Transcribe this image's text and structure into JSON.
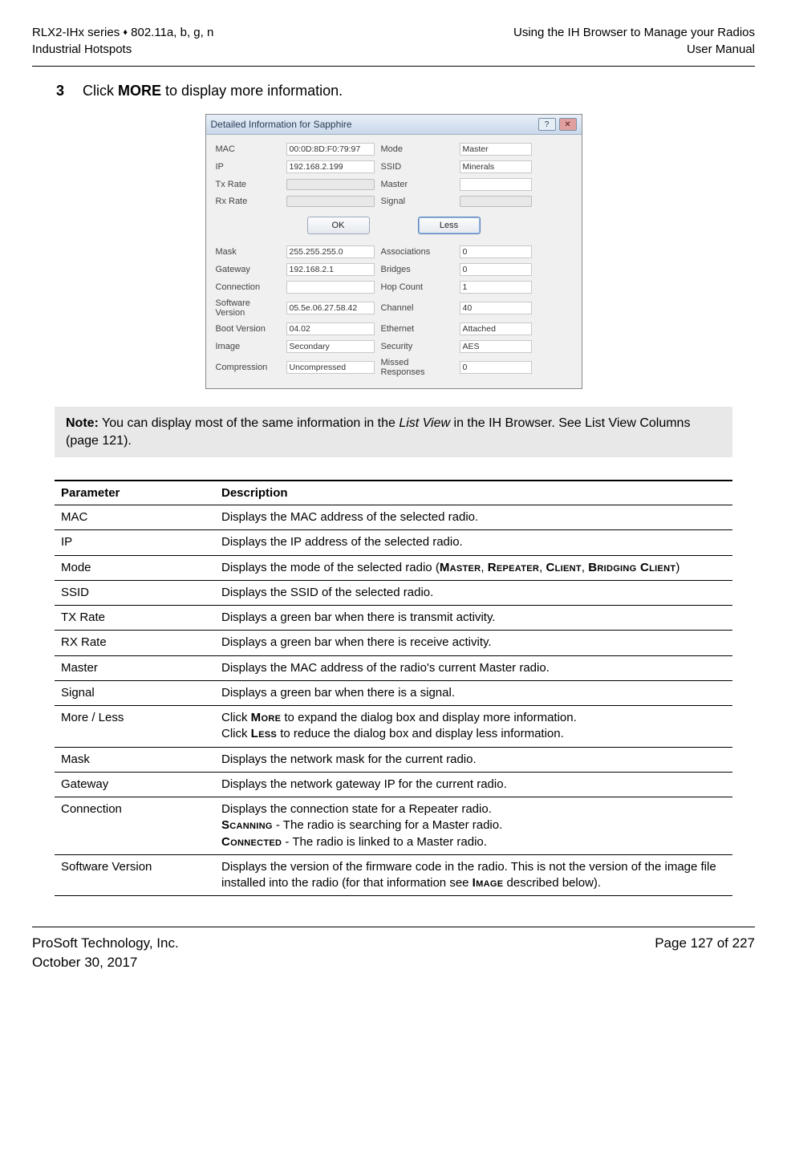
{
  "header": {
    "left_line1_a": "RLX2-IHx series ",
    "left_line1_b": " 802.11a, b, g, n",
    "left_line2": "Industrial Hotspots",
    "right_line1": "Using the IH Browser to Manage your Radios",
    "right_line2": "User Manual"
  },
  "step": {
    "num": "3",
    "text_before": "Click ",
    "more": "MORE",
    "text_after": " to display more information."
  },
  "dialog": {
    "title": "Detailed Information for Sapphire",
    "top": [
      {
        "label": "MAC",
        "value": "00:0D:8D:F0:79:97",
        "label2": "Mode",
        "value2": "Master"
      },
      {
        "label": "IP",
        "value": "192.168.2.199",
        "label2": "SSID",
        "value2": "Minerals"
      },
      {
        "label": "Tx Rate",
        "bar": true,
        "label2": "Master",
        "value2": ""
      },
      {
        "label": "Rx Rate",
        "bar": true,
        "label2": "Signal",
        "bar2": true
      }
    ],
    "ok": "OK",
    "less": "Less",
    "bottom": [
      {
        "label": "Mask",
        "value": "255.255.255.0",
        "label2": "Associations",
        "value2": "0"
      },
      {
        "label": "Gateway",
        "value": "192.168.2.1",
        "label2": "Bridges",
        "value2": "0"
      },
      {
        "label": "Connection",
        "value": "",
        "label2": "Hop Count",
        "value2": "1"
      },
      {
        "label": "Software Version",
        "value": "05.5e.06.27.58.42",
        "label2": "Channel",
        "value2": "40"
      },
      {
        "label": "Boot Version",
        "value": "04.02",
        "label2": "Ethernet",
        "value2": "Attached"
      },
      {
        "label": "Image",
        "value": "Secondary",
        "label2": "Security",
        "value2": "AES"
      },
      {
        "label": "Compression",
        "value": "Uncompressed",
        "label2": "Missed Responses",
        "value2": "0"
      }
    ]
  },
  "note": {
    "label": "Note:",
    "t1": " You can display most of the same information in the ",
    "italic": "List View",
    "t2": " in the IH Browser. See List View Columns (page 121)."
  },
  "columns": {
    "param": "Parameter",
    "desc": "Description"
  },
  "rows": [
    {
      "p": "MAC",
      "d": "Displays the MAC address of the selected radio."
    },
    {
      "p": "IP",
      "d": "Displays the IP address of the selected radio."
    },
    {
      "p": "Mode",
      "d": "Displays the mode of the selected radio (<span class=\"sc\">Master</span>, <span class=\"sc\">Repeater</span>, <span class=\"sc\">Client</span>, <span class=\"sc\">Bridging Client</span>)"
    },
    {
      "p": "SSID",
      "d": "Displays the SSID of the selected radio."
    },
    {
      "p": "TX Rate",
      "d": "Displays a green bar when there is transmit activity."
    },
    {
      "p": "RX Rate",
      "d": "Displays a green bar when there is receive activity."
    },
    {
      "p": "Master",
      "d": "Displays the MAC address of the radio's current Master radio."
    },
    {
      "p": "Signal",
      "d": "Displays a green bar when there is a signal."
    },
    {
      "p": "More / Less",
      "d": "Click <span class=\"sc\">More</span> to expand the dialog box and display more information.<br>Click <span class=\"sc\">Less</span> to reduce the dialog box and display less information."
    },
    {
      "p": "Mask",
      "d": "Displays the network mask for the current radio."
    },
    {
      "p": "Gateway",
      "d": "Displays the network gateway IP for the current radio."
    },
    {
      "p": "Connection",
      "d": "Displays the connection state for a Repeater radio.<br><span class=\"sc\">Scanning</span> - The radio is searching for a Master radio.<br><span class=\"sc\">Connected</span> - The radio is linked to a Master radio."
    },
    {
      "p": "Software Version",
      "d": "Displays the version of the firmware code in the radio. This is not the version of the image file installed into the radio (for that information see <span class=\"sc\">Image</span> described below)."
    }
  ],
  "footer": {
    "left1": "ProSoft Technology, Inc.",
    "left2": "October 30, 2017",
    "right": "Page 127 of 227"
  }
}
